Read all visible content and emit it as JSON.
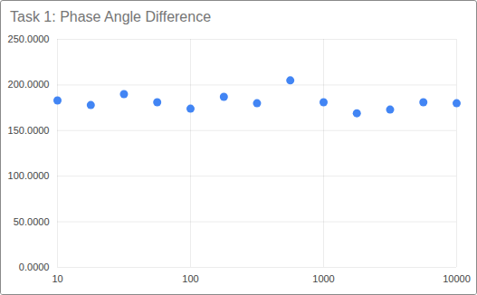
{
  "chart_data": {
    "type": "scatter",
    "title": "Task 1: Phase Angle Difference",
    "x": [
      10,
      17.8,
      31.6,
      56.2,
      100,
      178,
      316,
      562,
      1000,
      1778,
      3162,
      5623,
      10000
    ],
    "values": [
      183,
      178,
      190,
      181,
      174,
      187,
      180,
      205,
      181,
      169,
      173,
      181,
      180
    ],
    "color": "#4285f4",
    "log": "x",
    "xlim": [
      10,
      10000
    ],
    "xticks": [
      10,
      100,
      1000,
      10000
    ],
    "ylim": [
      0,
      250
    ],
    "yticks": [
      {
        "value": 0,
        "label": "0.0000"
      },
      {
        "value": 50,
        "label": "50.0000"
      },
      {
        "value": 100,
        "label": "100.0000"
      },
      {
        "value": 150,
        "label": "150.0000"
      },
      {
        "value": 200,
        "label": "200.0000"
      },
      {
        "value": 250,
        "label": "250.0000"
      }
    ],
    "grid": true
  }
}
